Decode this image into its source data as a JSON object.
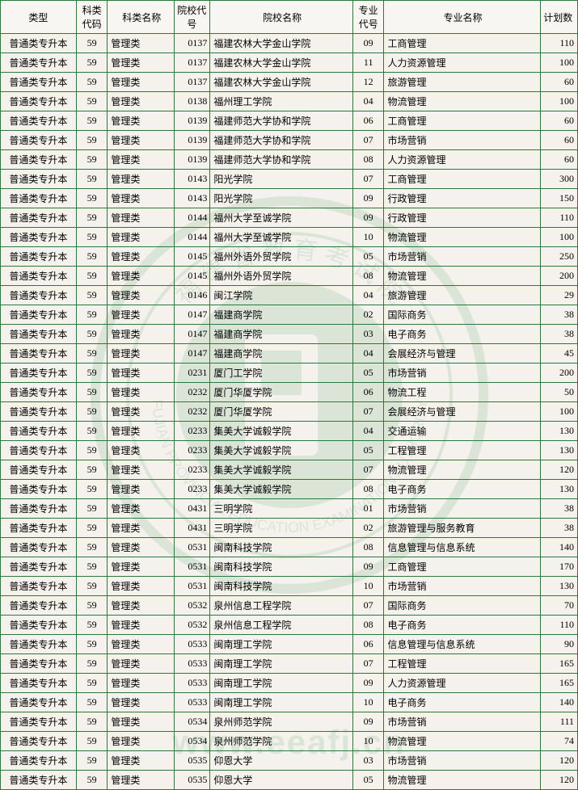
{
  "watermark_url_text": "www.eeafj.cn",
  "border_color": "#2a7a3a",
  "background_color": "#f5f2ed",
  "headers": {
    "type": "类型",
    "sub_code": "科类代码",
    "sub_name": "科类名称",
    "sch_code": "院校代号",
    "sch_name": "院校名称",
    "maj_code": "专业代号",
    "maj_name": "专业名称",
    "plan": "计划数"
  },
  "rows": [
    {
      "type": "普通类专升本",
      "sub_code": "59",
      "sub_name": "管理类",
      "sch_code": "0137",
      "sch_name": "福建农林大学金山学院",
      "maj_code": "09",
      "maj_name": "工商管理",
      "plan": "110"
    },
    {
      "type": "普通类专升本",
      "sub_code": "59",
      "sub_name": "管理类",
      "sch_code": "0137",
      "sch_name": "福建农林大学金山学院",
      "maj_code": "11",
      "maj_name": "人力资源管理",
      "plan": "100"
    },
    {
      "type": "普通类专升本",
      "sub_code": "59",
      "sub_name": "管理类",
      "sch_code": "0137",
      "sch_name": "福建农林大学金山学院",
      "maj_code": "12",
      "maj_name": "旅游管理",
      "plan": "60"
    },
    {
      "type": "普通类专升本",
      "sub_code": "59",
      "sub_name": "管理类",
      "sch_code": "0138",
      "sch_name": "福州理工学院",
      "maj_code": "04",
      "maj_name": "物流管理",
      "plan": "100"
    },
    {
      "type": "普通类专升本",
      "sub_code": "59",
      "sub_name": "管理类",
      "sch_code": "0139",
      "sch_name": "福建师范大学协和学院",
      "maj_code": "06",
      "maj_name": "工商管理",
      "plan": "60"
    },
    {
      "type": "普通类专升本",
      "sub_code": "59",
      "sub_name": "管理类",
      "sch_code": "0139",
      "sch_name": "福建师范大学协和学院",
      "maj_code": "07",
      "maj_name": "市场营销",
      "plan": "60"
    },
    {
      "type": "普通类专升本",
      "sub_code": "59",
      "sub_name": "管理类",
      "sch_code": "0139",
      "sch_name": "福建师范大学协和学院",
      "maj_code": "08",
      "maj_name": "人力资源管理",
      "plan": "60"
    },
    {
      "type": "普通类专升本",
      "sub_code": "59",
      "sub_name": "管理类",
      "sch_code": "0143",
      "sch_name": "阳光学院",
      "maj_code": "07",
      "maj_name": "工商管理",
      "plan": "300"
    },
    {
      "type": "普通类专升本",
      "sub_code": "59",
      "sub_name": "管理类",
      "sch_code": "0143",
      "sch_name": "阳光学院",
      "maj_code": "09",
      "maj_name": "行政管理",
      "plan": "150"
    },
    {
      "type": "普通类专升本",
      "sub_code": "59",
      "sub_name": "管理类",
      "sch_code": "0144",
      "sch_name": "福州大学至诚学院",
      "maj_code": "09",
      "maj_name": "行政管理",
      "plan": "110"
    },
    {
      "type": "普通类专升本",
      "sub_code": "59",
      "sub_name": "管理类",
      "sch_code": "0144",
      "sch_name": "福州大学至诚学院",
      "maj_code": "10",
      "maj_name": "物流管理",
      "plan": "100"
    },
    {
      "type": "普通类专升本",
      "sub_code": "59",
      "sub_name": "管理类",
      "sch_code": "0145",
      "sch_name": "福州外语外贸学院",
      "maj_code": "05",
      "maj_name": "市场营销",
      "plan": "250"
    },
    {
      "type": "普通类专升本",
      "sub_code": "59",
      "sub_name": "管理类",
      "sch_code": "0145",
      "sch_name": "福州外语外贸学院",
      "maj_code": "08",
      "maj_name": "物流管理",
      "plan": "200"
    },
    {
      "type": "普通类专升本",
      "sub_code": "59",
      "sub_name": "管理类",
      "sch_code": "0146",
      "sch_name": "闽江学院",
      "maj_code": "04",
      "maj_name": "旅游管理",
      "plan": "29"
    },
    {
      "type": "普通类专升本",
      "sub_code": "59",
      "sub_name": "管理类",
      "sch_code": "0147",
      "sch_name": "福建商学院",
      "maj_code": "02",
      "maj_name": "国际商务",
      "plan": "38"
    },
    {
      "type": "普通类专升本",
      "sub_code": "59",
      "sub_name": "管理类",
      "sch_code": "0147",
      "sch_name": "福建商学院",
      "maj_code": "03",
      "maj_name": "电子商务",
      "plan": "38"
    },
    {
      "type": "普通类专升本",
      "sub_code": "59",
      "sub_name": "管理类",
      "sch_code": "0147",
      "sch_name": "福建商学院",
      "maj_code": "04",
      "maj_name": "会展经济与管理",
      "plan": "45"
    },
    {
      "type": "普通类专升本",
      "sub_code": "59",
      "sub_name": "管理类",
      "sch_code": "0231",
      "sch_name": "厦门工学院",
      "maj_code": "05",
      "maj_name": "市场营销",
      "plan": "200"
    },
    {
      "type": "普通类专升本",
      "sub_code": "59",
      "sub_name": "管理类",
      "sch_code": "0232",
      "sch_name": "厦门华厦学院",
      "maj_code": "06",
      "maj_name": "物流工程",
      "plan": "50"
    },
    {
      "type": "普通类专升本",
      "sub_code": "59",
      "sub_name": "管理类",
      "sch_code": "0232",
      "sch_name": "厦门华厦学院",
      "maj_code": "07",
      "maj_name": "会展经济与管理",
      "plan": "100"
    },
    {
      "type": "普通类专升本",
      "sub_code": "59",
      "sub_name": "管理类",
      "sch_code": "0233",
      "sch_name": "集美大学诚毅学院",
      "maj_code": "04",
      "maj_name": "交通运输",
      "plan": "130"
    },
    {
      "type": "普通类专升本",
      "sub_code": "59",
      "sub_name": "管理类",
      "sch_code": "0233",
      "sch_name": "集美大学诚毅学院",
      "maj_code": "05",
      "maj_name": "工程管理",
      "plan": "130"
    },
    {
      "type": "普通类专升本",
      "sub_code": "59",
      "sub_name": "管理类",
      "sch_code": "0233",
      "sch_name": "集美大学诚毅学院",
      "maj_code": "07",
      "maj_name": "物流管理",
      "plan": "120"
    },
    {
      "type": "普通类专升本",
      "sub_code": "59",
      "sub_name": "管理类",
      "sch_code": "0233",
      "sch_name": "集美大学诚毅学院",
      "maj_code": "08",
      "maj_name": "电子商务",
      "plan": "130"
    },
    {
      "type": "普通类专升本",
      "sub_code": "59",
      "sub_name": "管理类",
      "sch_code": "0431",
      "sch_name": "三明学院",
      "maj_code": "01",
      "maj_name": "市场营销",
      "plan": "38"
    },
    {
      "type": "普通类专升本",
      "sub_code": "59",
      "sub_name": "管理类",
      "sch_code": "0431",
      "sch_name": "三明学院",
      "maj_code": "02",
      "maj_name": "旅游管理与服务教育",
      "plan": "38"
    },
    {
      "type": "普通类专升本",
      "sub_code": "59",
      "sub_name": "管理类",
      "sch_code": "0531",
      "sch_name": "闽南科技学院",
      "maj_code": "08",
      "maj_name": "信息管理与信息系统",
      "plan": "140"
    },
    {
      "type": "普通类专升本",
      "sub_code": "59",
      "sub_name": "管理类",
      "sch_code": "0531",
      "sch_name": "闽南科技学院",
      "maj_code": "09",
      "maj_name": "工商管理",
      "plan": "170"
    },
    {
      "type": "普通类专升本",
      "sub_code": "59",
      "sub_name": "管理类",
      "sch_code": "0531",
      "sch_name": "闽南科技学院",
      "maj_code": "10",
      "maj_name": "市场营销",
      "plan": "130"
    },
    {
      "type": "普通类专升本",
      "sub_code": "59",
      "sub_name": "管理类",
      "sch_code": "0532",
      "sch_name": "泉州信息工程学院",
      "maj_code": "07",
      "maj_name": "国际商务",
      "plan": "70"
    },
    {
      "type": "普通类专升本",
      "sub_code": "59",
      "sub_name": "管理类",
      "sch_code": "0532",
      "sch_name": "泉州信息工程学院",
      "maj_code": "08",
      "maj_name": "电子商务",
      "plan": "110"
    },
    {
      "type": "普通类专升本",
      "sub_code": "59",
      "sub_name": "管理类",
      "sch_code": "0533",
      "sch_name": "闽南理工学院",
      "maj_code": "06",
      "maj_name": "信息管理与信息系统",
      "plan": "90"
    },
    {
      "type": "普通类专升本",
      "sub_code": "59",
      "sub_name": "管理类",
      "sch_code": "0533",
      "sch_name": "闽南理工学院",
      "maj_code": "07",
      "maj_name": "工程管理",
      "plan": "165"
    },
    {
      "type": "普通类专升本",
      "sub_code": "59",
      "sub_name": "管理类",
      "sch_code": "0533",
      "sch_name": "闽南理工学院",
      "maj_code": "09",
      "maj_name": "人力资源管理",
      "plan": "165"
    },
    {
      "type": "普通类专升本",
      "sub_code": "59",
      "sub_name": "管理类",
      "sch_code": "0533",
      "sch_name": "闽南理工学院",
      "maj_code": "10",
      "maj_name": "电子商务",
      "plan": "140"
    },
    {
      "type": "普通类专升本",
      "sub_code": "59",
      "sub_name": "管理类",
      "sch_code": "0534",
      "sch_name": "泉州师范学院",
      "maj_code": "09",
      "maj_name": "市场营销",
      "plan": "111"
    },
    {
      "type": "普通类专升本",
      "sub_code": "59",
      "sub_name": "管理类",
      "sch_code": "0534",
      "sch_name": "泉州师范学院",
      "maj_code": "10",
      "maj_name": "物流管理",
      "plan": "74"
    },
    {
      "type": "普通类专升本",
      "sub_code": "59",
      "sub_name": "管理类",
      "sch_code": "0535",
      "sch_name": "仰恩大学",
      "maj_code": "03",
      "maj_name": "市场营销",
      "plan": "120"
    },
    {
      "type": "普通类专升本",
      "sub_code": "59",
      "sub_name": "管理类",
      "sch_code": "0535",
      "sch_name": "仰恩大学",
      "maj_code": "05",
      "maj_name": "物流管理",
      "plan": "120"
    }
  ]
}
